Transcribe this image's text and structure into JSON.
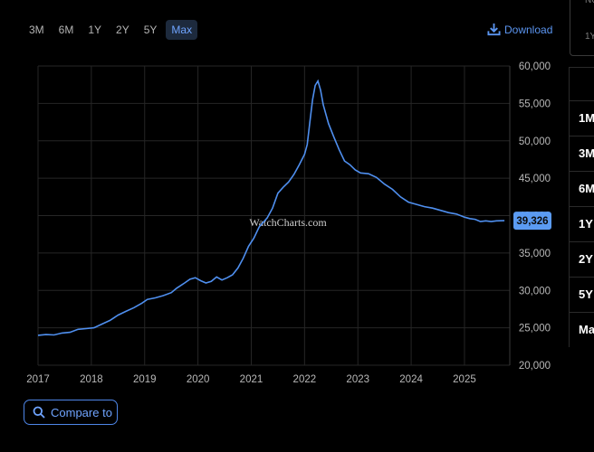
{
  "range_buttons": [
    {
      "label": "3M",
      "active": false
    },
    {
      "label": "6M",
      "active": false
    },
    {
      "label": "1Y",
      "active": false
    },
    {
      "label": "2Y",
      "active": false
    },
    {
      "label": "5Y",
      "active": false
    },
    {
      "label": "Max",
      "active": true
    }
  ],
  "download_label": "Download",
  "compare_label": "Compare to",
  "watermark": "WatchCharts.com",
  "side_panel": {
    "top_label": "NU",
    "second_label": "1Y",
    "rows": [
      "",
      "1M",
      "3M",
      "6M",
      "1Y",
      "2Y",
      "5Y",
      "Ma"
    ]
  },
  "colors": {
    "line": "#4f8fef",
    "badge": "#5b9bf2",
    "accent": "#6fa4ff"
  },
  "chart_data": {
    "type": "line",
    "title": "",
    "xlabel": "",
    "ylabel": "",
    "xlim": [
      2017.0,
      2025.85
    ],
    "ylim": [
      20000,
      60000
    ],
    "grid": true,
    "y_axis_position": "right",
    "x_ticks": [
      "2017",
      "2018",
      "2019",
      "2020",
      "2021",
      "2022",
      "2023",
      "2024",
      "2025"
    ],
    "y_ticks": [
      "20,000",
      "25,000",
      "30,000",
      "35,000",
      "40,000",
      "45,000",
      "50,000",
      "55,000",
      "60,000"
    ],
    "current_value_label": "39,326",
    "current_value": 39326,
    "series": [
      {
        "values": [
          [
            2017.0,
            24000
          ],
          [
            2017.15,
            24100
          ],
          [
            2017.3,
            24050
          ],
          [
            2017.45,
            24300
          ],
          [
            2017.6,
            24400
          ],
          [
            2017.75,
            24800
          ],
          [
            2017.9,
            24900
          ],
          [
            2018.05,
            25000
          ],
          [
            2018.2,
            25500
          ],
          [
            2018.35,
            26000
          ],
          [
            2018.5,
            26700
          ],
          [
            2018.65,
            27200
          ],
          [
            2018.8,
            27700
          ],
          [
            2018.95,
            28300
          ],
          [
            2019.05,
            28800
          ],
          [
            2019.2,
            29000
          ],
          [
            2019.35,
            29300
          ],
          [
            2019.5,
            29700
          ],
          [
            2019.6,
            30300
          ],
          [
            2019.75,
            31000
          ],
          [
            2019.85,
            31500
          ],
          [
            2019.95,
            31700
          ],
          [
            2020.05,
            31300
          ],
          [
            2020.15,
            31000
          ],
          [
            2020.25,
            31200
          ],
          [
            2020.35,
            31800
          ],
          [
            2020.45,
            31400
          ],
          [
            2020.55,
            31700
          ],
          [
            2020.65,
            32100
          ],
          [
            2020.75,
            33000
          ],
          [
            2020.85,
            34300
          ],
          [
            2020.95,
            35900
          ],
          [
            2021.05,
            37000
          ],
          [
            2021.15,
            38500
          ],
          [
            2021.3,
            39700
          ],
          [
            2021.4,
            41000
          ],
          [
            2021.5,
            43000
          ],
          [
            2021.6,
            43800
          ],
          [
            2021.7,
            44500
          ],
          [
            2021.8,
            45500
          ],
          [
            2021.9,
            46800
          ],
          [
            2022.0,
            48200
          ],
          [
            2022.05,
            49500
          ],
          [
            2022.1,
            52500
          ],
          [
            2022.15,
            55500
          ],
          [
            2022.2,
            57400
          ],
          [
            2022.25,
            58000
          ],
          [
            2022.3,
            56800
          ],
          [
            2022.35,
            54800
          ],
          [
            2022.45,
            52300
          ],
          [
            2022.55,
            50500
          ],
          [
            2022.65,
            48800
          ],
          [
            2022.75,
            47300
          ],
          [
            2022.85,
            46800
          ],
          [
            2022.95,
            46100
          ],
          [
            2023.05,
            45700
          ],
          [
            2023.2,
            45600
          ],
          [
            2023.35,
            45100
          ],
          [
            2023.5,
            44200
          ],
          [
            2023.65,
            43500
          ],
          [
            2023.8,
            42500
          ],
          [
            2023.95,
            41800
          ],
          [
            2024.1,
            41500
          ],
          [
            2024.25,
            41200
          ],
          [
            2024.4,
            41000
          ],
          [
            2024.55,
            40700
          ],
          [
            2024.7,
            40400
          ],
          [
            2024.85,
            40200
          ],
          [
            2025.0,
            39800
          ],
          [
            2025.1,
            39600
          ],
          [
            2025.2,
            39500
          ],
          [
            2025.3,
            39200
          ],
          [
            2025.4,
            39300
          ],
          [
            2025.5,
            39200
          ],
          [
            2025.6,
            39300
          ],
          [
            2025.75,
            39326
          ]
        ]
      }
    ]
  }
}
